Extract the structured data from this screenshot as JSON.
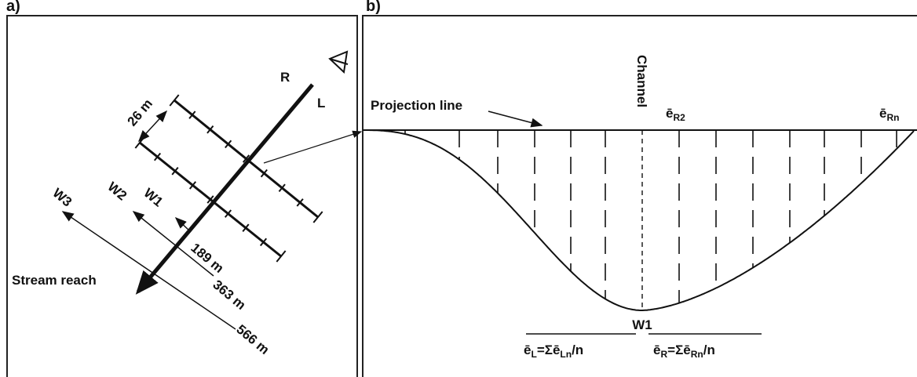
{
  "panel_a": {
    "label": "a)",
    "right_bank": "R",
    "left_bank": "L",
    "spacing": "26 m",
    "transects": [
      {
        "name": "W1",
        "distance": "189 m"
      },
      {
        "name": "W2",
        "distance": "363 m"
      },
      {
        "name": "W3",
        "distance": "566 m"
      }
    ],
    "stream": "Stream reach"
  },
  "panel_b": {
    "label": "b)",
    "projection": "Projection line",
    "channel": "Channel",
    "e_r2": [
      "ē",
      "R2"
    ],
    "e_rn": [
      "ē",
      "Rn"
    ],
    "transect": "W1",
    "left_formula": [
      "ē",
      "L",
      "=Σē",
      "Ln",
      "/n"
    ],
    "right_formula": [
      "ē",
      "R",
      "=Σē",
      "Rn",
      "/n"
    ]
  }
}
